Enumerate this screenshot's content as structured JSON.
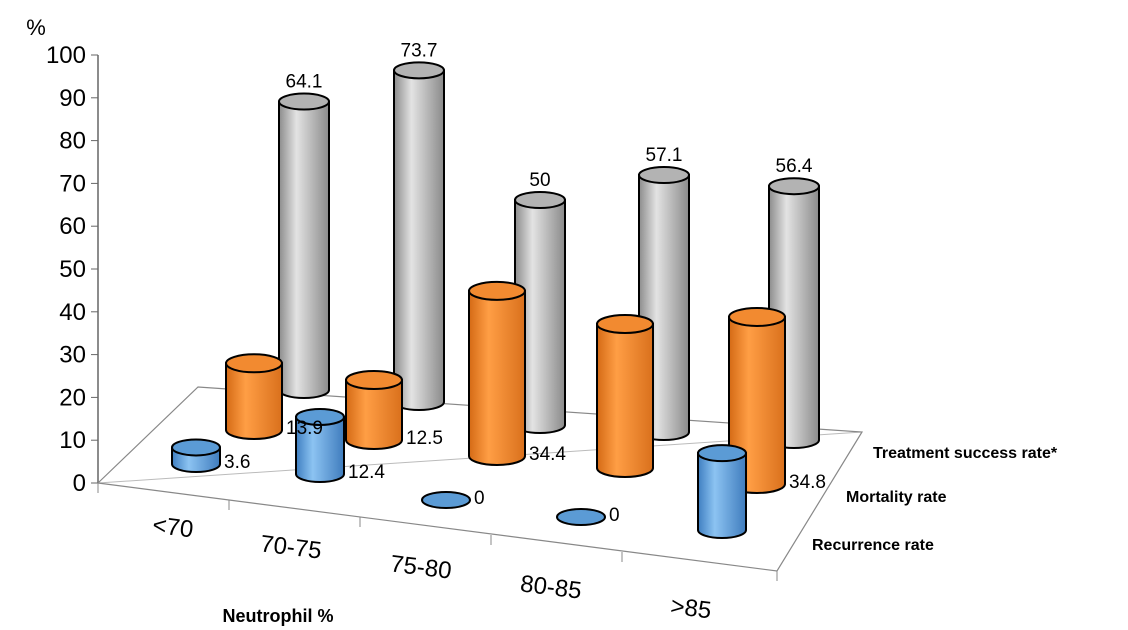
{
  "chart_data": {
    "type": "bar",
    "style": "3d-cylinder",
    "categories": [
      "<70",
      "70-75",
      "75-80",
      "80-85",
      ">85"
    ],
    "series": [
      {
        "name": "Recurrence rate",
        "values": [
          3.6,
          12.4,
          0,
          0,
          16.7
        ],
        "color": "#5b9bd5",
        "value_labels": [
          "3.6",
          "12.4",
          "0",
          "0",
          ""
        ]
      },
      {
        "name": "Mortality rate",
        "values": [
          13.9,
          12.5,
          34.4,
          30.0,
          34.8
        ],
        "color": "#f28a30",
        "value_labels": [
          "13.9",
          "12.5",
          "34.4",
          "",
          "34.8"
        ]
      },
      {
        "name": "Treatment success rate*",
        "values": [
          64.1,
          73.7,
          50,
          57.1,
          56.4
        ],
        "color": "#b3b3b3",
        "value_labels": [
          "64.1",
          "73.7",
          "50",
          "57.1",
          "56.4"
        ]
      }
    ],
    "y_unit_label": "%",
    "xlabel": "Neutrophil %",
    "ylim": [
      0,
      100
    ],
    "yticks": [
      "0",
      "10",
      "20",
      "30",
      "40",
      "50",
      "60",
      "70",
      "80",
      "90",
      "100"
    ],
    "grid": false,
    "legend": "depth-axis labels on right"
  }
}
